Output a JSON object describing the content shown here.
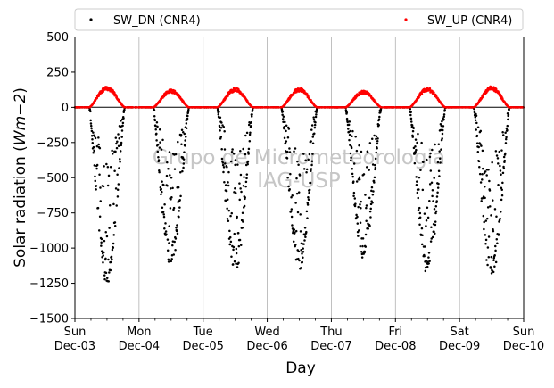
{
  "chart_data": {
    "type": "scatter",
    "legend": {
      "placement": "top",
      "entries": [
        {
          "label": "SW_DN (CNR4)",
          "color": "#000000"
        },
        {
          "label": "SW_UP (CNR4)",
          "color": "#ff0000"
        }
      ]
    },
    "ylabel_prefix": "Solar radiation (",
    "ylabel_unit": "Wm−2",
    "ylabel_suffix": ")",
    "xlabel": "Day",
    "ylim": [
      -1500,
      500
    ],
    "yticks": [
      {
        "value": 500,
        "label": "500"
      },
      {
        "value": 250,
        "label": "250"
      },
      {
        "value": 0,
        "label": "0"
      },
      {
        "value": -250,
        "label": "−250"
      },
      {
        "value": -500,
        "label": "−500"
      },
      {
        "value": -750,
        "label": "−750"
      },
      {
        "value": -1000,
        "label": "−1000"
      },
      {
        "value": -1250,
        "label": "−1250"
      },
      {
        "value": -1500,
        "label": "−1500"
      }
    ],
    "xlim": [
      "2023-12-03",
      "2023-12-10"
    ],
    "xticks": [
      {
        "day": "Sun",
        "date": "Dec-03"
      },
      {
        "day": "Mon",
        "date": "Dec-04"
      },
      {
        "day": "Tue",
        "date": "Dec-05"
      },
      {
        "day": "Wed",
        "date": "Dec-06"
      },
      {
        "day": "Thu",
        "date": "Dec-07"
      },
      {
        "day": "Fri",
        "date": "Dec-08"
      },
      {
        "day": "Sat",
        "date": "Dec-09"
      },
      {
        "day": "Sun",
        "date": "Dec-10"
      }
    ],
    "grid": "vertical at day boundaries",
    "watermark": [
      "Grupo de Micrometeorologia",
      "IAG-USP"
    ],
    "daily": [
      {
        "date": "Dec-03",
        "sunrise_hour": 5.3,
        "sunset_hour": 18.7,
        "sw_dn_min": -1270,
        "sw_up_max": 150
      },
      {
        "date": "Dec-04",
        "sunrise_hour": 5.3,
        "sunset_hour": 18.7,
        "sw_dn_min": -1140,
        "sw_up_max": 130
      },
      {
        "date": "Dec-05",
        "sunrise_hour": 5.3,
        "sunset_hour": 18.7,
        "sw_dn_min": -1180,
        "sw_up_max": 140
      },
      {
        "date": "Dec-06",
        "sunrise_hour": 5.3,
        "sunset_hour": 18.7,
        "sw_dn_min": -1160,
        "sw_up_max": 140
      },
      {
        "date": "Dec-07",
        "sunrise_hour": 5.3,
        "sunset_hour": 18.7,
        "sw_dn_min": -1080,
        "sw_up_max": 120
      },
      {
        "date": "Dec-08",
        "sunrise_hour": 5.3,
        "sunset_hour": 18.7,
        "sw_dn_min": -1190,
        "sw_up_max": 140
      },
      {
        "date": "Dec-09",
        "sunrise_hour": 5.3,
        "sunset_hour": 18.7,
        "sw_dn_min": -1240,
        "sw_up_max": 150
      }
    ]
  }
}
